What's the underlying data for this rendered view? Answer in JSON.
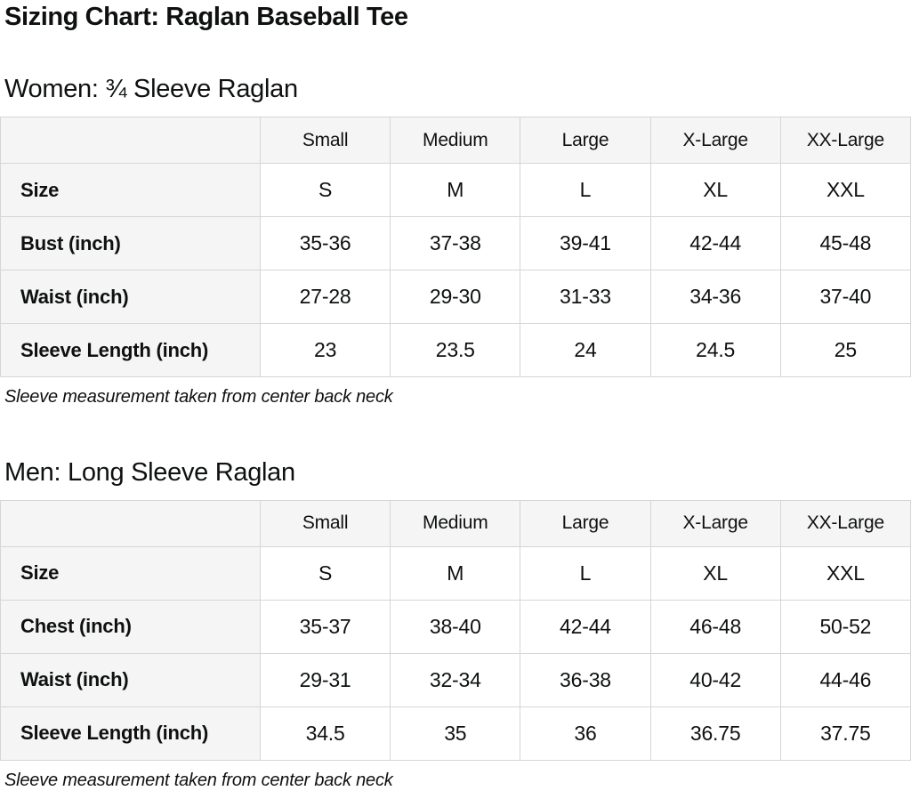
{
  "page_title": "Sizing Chart: Raglan Baseball Tee",
  "colors": {
    "text": "#0f1111",
    "header_cell_bg": "#f5f5f5",
    "table_border": "#d6d6d6",
    "data_cell_bg": "#ffffff"
  },
  "chart_data": [
    {
      "type": "table",
      "title": "Women: ¾ Sleeve Raglan",
      "columns": [
        "",
        "Small",
        "Medium",
        "Large",
        "X-Large",
        "XX-Large"
      ],
      "rows": [
        {
          "label": "Size",
          "values": [
            "S",
            "M",
            "L",
            "XL",
            "XXL"
          ]
        },
        {
          "label": "Bust (inch)",
          "values": [
            "35-36",
            "37-38",
            "39-41",
            "42-44",
            "45-48"
          ]
        },
        {
          "label": "Waist (inch)",
          "values": [
            "27-28",
            "29-30",
            "31-33",
            "34-36",
            "37-40"
          ]
        },
        {
          "label": "Sleeve Length (inch)",
          "values": [
            "23",
            "23.5",
            "24",
            "24.5",
            "25"
          ]
        }
      ],
      "note": "Sleeve measurement taken from center back neck"
    },
    {
      "type": "table",
      "title": "Men: Long Sleeve Raglan",
      "columns": [
        "",
        "Small",
        "Medium",
        "Large",
        "X-Large",
        "XX-Large"
      ],
      "rows": [
        {
          "label": "Size",
          "values": [
            "S",
            "M",
            "L",
            "XL",
            "XXL"
          ]
        },
        {
          "label": "Chest (inch)",
          "values": [
            "35-37",
            "38-40",
            "42-44",
            "46-48",
            "50-52"
          ]
        },
        {
          "label": "Waist (inch)",
          "values": [
            "29-31",
            "32-34",
            "36-38",
            "40-42",
            "44-46"
          ]
        },
        {
          "label": "Sleeve Length (inch)",
          "values": [
            "34.5",
            "35",
            "36",
            "36.75",
            "37.75"
          ]
        }
      ],
      "note": "Sleeve measurement taken from center back neck"
    }
  ]
}
